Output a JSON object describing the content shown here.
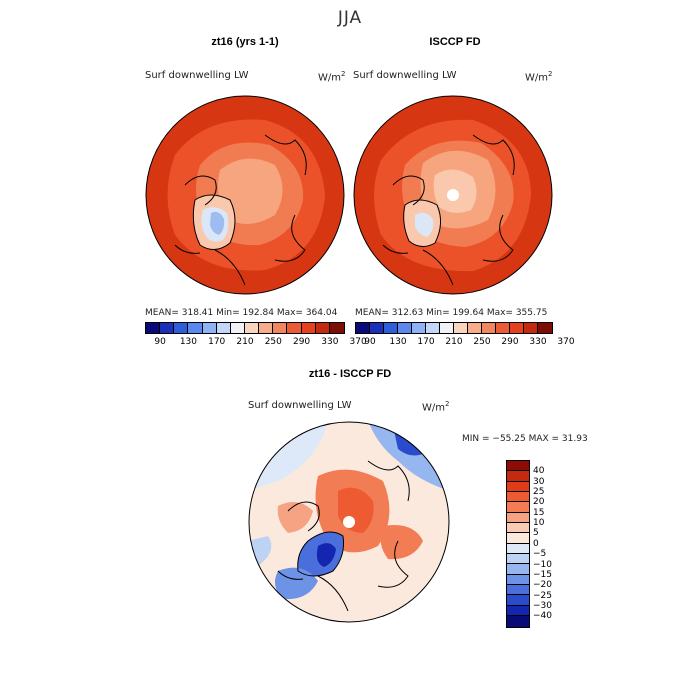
{
  "figure": {
    "title": "JJA"
  },
  "panels": [
    {
      "title": "zt16 (yrs 1-1)",
      "variable": "Surf downwelling LW",
      "units_base": "W/m",
      "units_exp": "2",
      "stats": "MEAN= 318.41   Min= 192.84   Max= 364.04"
    },
    {
      "title": "ISCCP FD",
      "variable": "Surf downwelling LW",
      "units_base": "W/m",
      "units_exp": "2",
      "stats": "MEAN= 312.63   Min= 199.64   Max= 355.75"
    },
    {
      "title": "zt16 - ISCCP FD",
      "variable": "Surf downwelling LW",
      "units_base": "W/m",
      "units_exp": "2",
      "stats": "MIN = −55.25  MAX =   31.93"
    }
  ],
  "colorbar_top": {
    "ticks": [
      "90",
      "130",
      "170",
      "210",
      "250",
      "290",
      "330",
      "370"
    ],
    "colors": [
      "#0a0a7a",
      "#1b2fb8",
      "#2f5fd8",
      "#5a8af0",
      "#8fb3f5",
      "#c2d6f7",
      "#f0f2f7",
      "#f9d4bf",
      "#f6ad8c",
      "#f28660",
      "#ed5a36",
      "#e6401e",
      "#c62a0e",
      "#7d0d05"
    ]
  },
  "colorbar_diff": {
    "ticks": [
      "40",
      "30",
      "25",
      "20",
      "15",
      "10",
      "5",
      "0",
      "−5",
      "−10",
      "−15",
      "−20",
      "−25",
      "−30",
      "−40"
    ],
    "colors": [
      "#8b0d05",
      "#c62a0e",
      "#e13c1a",
      "#ee5a32",
      "#f27d55",
      "#f5a382",
      "#f9cbb3",
      "#fbe9de",
      "#dde9f8",
      "#bcd3f4",
      "#95b6ee",
      "#6c93e6",
      "#4a6fdc",
      "#2a4bcb",
      "#1426b0",
      "#080a78"
    ]
  },
  "map_colors": {
    "deep": "#d63612",
    "mid": "#ec5229",
    "light": "#f27c52",
    "pale": "#f7a57f",
    "paler": "#f9c8ad",
    "cold": "#dbe6f7",
    "colder": "#9fbcf0",
    "blue": "#5077d9",
    "darkblue": "#1f3fbf"
  }
}
